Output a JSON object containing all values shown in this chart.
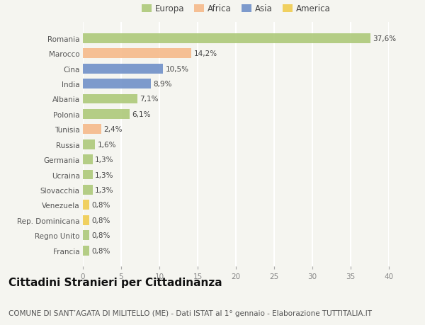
{
  "countries": [
    "Romania",
    "Marocco",
    "Cina",
    "India",
    "Albania",
    "Polonia",
    "Tunisia",
    "Russia",
    "Germania",
    "Ucraina",
    "Slovacchia",
    "Venezuela",
    "Rep. Dominicana",
    "Regno Unito",
    "Francia"
  ],
  "values": [
    37.6,
    14.2,
    10.5,
    8.9,
    7.1,
    6.1,
    2.4,
    1.6,
    1.3,
    1.3,
    1.3,
    0.8,
    0.8,
    0.8,
    0.8
  ],
  "labels": [
    "37,6%",
    "14,2%",
    "10,5%",
    "8,9%",
    "7,1%",
    "6,1%",
    "2,4%",
    "1,6%",
    "1,3%",
    "1,3%",
    "1,3%",
    "0,8%",
    "0,8%",
    "0,8%",
    "0,8%"
  ],
  "continents": [
    "Europa",
    "Africa",
    "Asia",
    "Asia",
    "Europa",
    "Europa",
    "Africa",
    "Europa",
    "Europa",
    "Europa",
    "Europa",
    "America",
    "America",
    "Europa",
    "Europa"
  ],
  "colors": {
    "Europa": "#adc97a",
    "Africa": "#f5b98a",
    "Asia": "#7090c8",
    "America": "#f0cc50"
  },
  "bg_color": "#f5f5f0",
  "grid_color": "#ffffff",
  "bar_height": 0.65,
  "xlim": [
    0,
    40
  ],
  "xticks": [
    0,
    5,
    10,
    15,
    20,
    25,
    30,
    35,
    40
  ],
  "title": "Cittadini Stranieri per Cittadinanza",
  "subtitle": "COMUNE DI SANT’AGATA DI MILITELLO (ME) - Dati ISTAT al 1° gennaio - Elaborazione TUTTITALIA.IT",
  "title_fontsize": 11,
  "subtitle_fontsize": 7.5,
  "label_fontsize": 7.5,
  "tick_fontsize": 7.5,
  "legend_fontsize": 8.5
}
